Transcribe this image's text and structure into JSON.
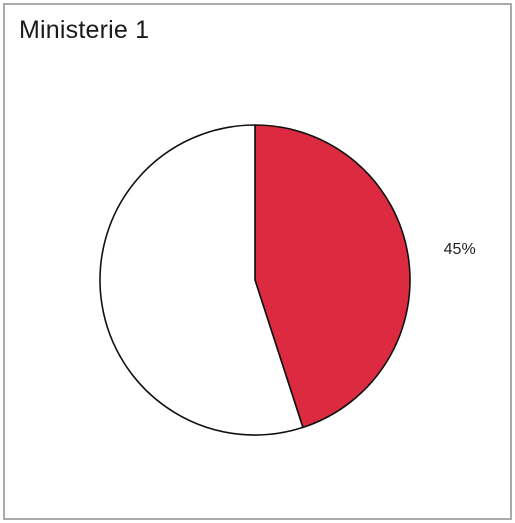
{
  "chart_data": {
    "type": "pie",
    "title": "Ministerie 1",
    "slices": [
      {
        "value": 45,
        "label": "45%",
        "color": "#dc2b41"
      },
      {
        "value": 55,
        "label": "",
        "color": "#ffffff"
      }
    ]
  }
}
